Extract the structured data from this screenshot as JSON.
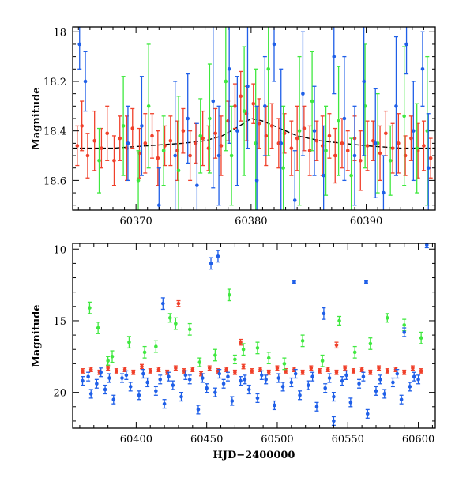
{
  "colors": {
    "blue": "#1f5fe8",
    "green": "#3fe83f",
    "red": "#f0402a",
    "model": "#000000"
  },
  "chart_data": [
    {
      "type": "scatter",
      "xlabel": "",
      "ylabel": "Magnitude",
      "xlim": [
        60364.5,
        60396
      ],
      "ylim": [
        18.72,
        17.98
      ],
      "y_inverted": true,
      "grid": false,
      "legend": "none",
      "xticks": [
        60370,
        60380,
        60390
      ],
      "yticks": [
        18,
        18.2,
        18.4,
        18.6
      ],
      "xtick_labels": [
        "60370",
        "60380",
        "60390"
      ],
      "ytick_labels": [
        "18",
        "18.2",
        "18.4",
        "18.6"
      ],
      "model_curve": {
        "x": [
          60364.5,
          60368,
          60371,
          60374,
          60376,
          60377.5,
          60379,
          60380,
          60381,
          60382.5,
          60384,
          60386,
          60388,
          60390,
          60393,
          60396
        ],
        "y": [
          18.47,
          18.47,
          18.46,
          18.45,
          18.44,
          18.42,
          18.38,
          18.35,
          18.36,
          18.39,
          18.42,
          18.44,
          18.45,
          18.46,
          18.47,
          18.47
        ]
      },
      "series": [
        {
          "color_key": "red",
          "x": [
            60364.9,
            60365.3,
            60365.8,
            60366.4,
            60367.0,
            60367.5,
            60368.1,
            60368.6,
            60369.2,
            60369.7,
            60370.3,
            60370.8,
            60371.4,
            60371.9,
            60372.5,
            60373.0,
            60373.6,
            60374.1,
            60374.7,
            60375.2,
            60375.8,
            60376.3,
            60376.9,
            60377.4,
            60378.0,
            60378.6,
            60379.1,
            60379.6,
            60380.2,
            60380.7,
            60381.3,
            60381.8,
            60382.4,
            60382.9,
            60383.5,
            60384.0,
            60384.6,
            60385.1,
            60385.7,
            60386.2,
            60386.8,
            60387.3,
            60387.9,
            60388.4,
            60389.0,
            60389.5,
            60390.1,
            60390.6,
            60391.2,
            60391.7,
            60392.3,
            60392.8,
            60393.4,
            60393.9,
            60394.5,
            60395.0,
            60395.6
          ],
          "y": [
            18.46,
            18.38,
            18.5,
            18.44,
            18.47,
            18.41,
            18.52,
            18.43,
            18.47,
            18.39,
            18.49,
            18.45,
            18.42,
            18.51,
            18.46,
            18.44,
            18.48,
            18.4,
            18.5,
            18.45,
            18.43,
            18.47,
            18.41,
            18.46,
            18.36,
            18.3,
            18.26,
            18.33,
            18.29,
            18.37,
            18.42,
            18.38,
            18.45,
            18.41,
            18.47,
            18.43,
            18.39,
            18.48,
            18.44,
            18.46,
            18.42,
            18.5,
            18.45,
            18.48,
            18.43,
            18.52,
            18.46,
            18.44,
            18.49,
            18.41,
            18.47,
            18.45,
            18.5,
            18.43,
            18.48,
            18.46,
            18.51
          ],
          "err": [
            0.08,
            0.1,
            0.09,
            0.12,
            0.08,
            0.11,
            0.1,
            0.09,
            0.13,
            0.08,
            0.1,
            0.12,
            0.09,
            0.11,
            0.08,
            0.1,
            0.12,
            0.09,
            0.1,
            0.08,
            0.11,
            0.09,
            0.1,
            0.12,
            0.08,
            0.09,
            0.1,
            0.11,
            0.08,
            0.1,
            0.12,
            0.09,
            0.1,
            0.08,
            0.11,
            0.13,
            0.09,
            0.1,
            0.08,
            0.12,
            0.09,
            0.11,
            0.1,
            0.08,
            0.09,
            0.12,
            0.1,
            0.08,
            0.11,
            0.09,
            0.1,
            0.12,
            0.08,
            0.09,
            0.11,
            0.1,
            0.08
          ]
        },
        {
          "color_key": "green",
          "x": [
            60366.8,
            60368.9,
            60370.2,
            60371.1,
            60372.4,
            60373.7,
            60375.6,
            60376.4,
            60377.8,
            60378.3,
            60379.4,
            60380.4,
            60381.5,
            60382.8,
            60384.2,
            60385.3,
            60386.5,
            60387.6,
            60388.7,
            60389.9,
            60391.0,
            60392.1,
            60393.3,
            60394.4,
            60395.3
          ],
          "y": [
            18.52,
            18.38,
            18.6,
            18.3,
            18.48,
            18.56,
            18.42,
            18.35,
            18.2,
            18.5,
            18.32,
            18.45,
            18.15,
            18.55,
            18.4,
            18.28,
            18.48,
            18.36,
            18.58,
            18.3,
            18.45,
            18.52,
            18.34,
            18.47,
            18.4
          ],
          "err": [
            0.13,
            0.2,
            0.12,
            0.25,
            0.14,
            0.3,
            0.15,
            0.22,
            0.28,
            0.2,
            0.26,
            0.3,
            0.35,
            0.25,
            0.3,
            0.2,
            0.18,
            0.22,
            0.15,
            0.25,
            0.2,
            0.14,
            0.28,
            0.18,
            0.3
          ]
        },
        {
          "color_key": "blue",
          "x": [
            60365.1,
            60365.6,
            60369.3,
            60370.5,
            60372.0,
            60373.4,
            60374.5,
            60375.3,
            60376.7,
            60377.2,
            60378.1,
            60378.8,
            60379.7,
            60380.5,
            60381.2,
            60382.0,
            60382.6,
            60383.8,
            60384.5,
            60385.5,
            60386.3,
            60387.2,
            60388.1,
            60389.0,
            60389.8,
            60390.8,
            60391.5,
            60392.6,
            60393.5,
            60394.1,
            60394.9,
            60395.4
          ],
          "y": [
            18.05,
            18.2,
            18.45,
            18.38,
            18.7,
            18.5,
            18.35,
            18.62,
            18.28,
            18.5,
            18.15,
            18.4,
            18.22,
            18.6,
            18.3,
            18.05,
            18.45,
            18.68,
            18.25,
            18.4,
            18.58,
            18.1,
            18.35,
            18.5,
            18.2,
            18.45,
            18.65,
            18.3,
            18.05,
            18.4,
            18.15,
            18.55
          ],
          "err": [
            0.1,
            0.12,
            0.15,
            0.2,
            0.15,
            0.3,
            0.18,
            0.25,
            0.35,
            0.2,
            0.3,
            0.22,
            0.25,
            0.3,
            0.2,
            0.15,
            0.3,
            0.2,
            0.25,
            0.18,
            0.2,
            0.15,
            0.25,
            0.2,
            0.3,
            0.22,
            0.15,
            0.28,
            0.12,
            0.2,
            0.15,
            0.22
          ]
        }
      ]
    },
    {
      "type": "scatter",
      "xlabel": "HJD−2400000",
      "ylabel": "Magnitude",
      "xlim": [
        60355,
        60612
      ],
      "ylim": [
        22.5,
        9.6
      ],
      "y_inverted": true,
      "grid": false,
      "legend": "none",
      "xticks": [
        60400,
        60450,
        60500,
        60550,
        60600
      ],
      "yticks": [
        10,
        15,
        20
      ],
      "xtick_labels": [
        "60400",
        "60450",
        "60500",
        "60550",
        "60600"
      ],
      "ytick_labels": [
        "10",
        "15",
        "20"
      ],
      "series": [
        {
          "color_key": "blue",
          "x": [
            60362,
            60368,
            60372,
            60378,
            60384,
            60390,
            60396,
            60402,
            60408,
            60414,
            60420,
            60426,
            60432,
            60438,
            60444,
            60450,
            60456,
            60462,
            60468,
            60474,
            60480,
            60486,
            60492,
            60498,
            60504,
            60510,
            60516,
            60522,
            60528,
            60534,
            60540,
            60546,
            60552,
            60558,
            60564,
            60570,
            60576,
            60582,
            60588,
            60594,
            60600,
            60366,
            60375,
            60381,
            60393,
            60405,
            60417,
            60423,
            60435,
            60447,
            60459,
            60465,
            60477,
            60489,
            60501,
            60513,
            60525,
            60537,
            60549,
            60561,
            60573,
            60585,
            60597,
            60419,
            60453,
            60458,
            60512,
            60533,
            60563,
            60606,
            60590,
            60540
          ],
          "y": [
            19.2,
            20.1,
            19.4,
            19.8,
            20.5,
            19.0,
            19.6,
            20.2,
            19.3,
            19.9,
            20.8,
            19.5,
            20.3,
            19.1,
            21.2,
            19.7,
            20.0,
            19.4,
            20.6,
            19.2,
            19.8,
            20.4,
            19.1,
            20.9,
            19.6,
            19.3,
            20.2,
            19.5,
            21.0,
            19.7,
            20.3,
            19.2,
            20.7,
            19.4,
            21.5,
            19.9,
            20.1,
            19.3,
            20.5,
            19.6,
            19.1,
            18.9,
            18.6,
            19.0,
            18.8,
            18.7,
            19.1,
            18.9,
            18.8,
            19.0,
            18.7,
            18.9,
            19.1,
            18.8,
            19.0,
            18.7,
            18.9,
            19.0,
            18.8,
            18.9,
            19.1,
            18.7,
            18.9,
            13.8,
            11.0,
            10.5,
            12.3,
            14.5,
            12.3,
            9.7,
            15.8,
            22.0
          ],
          "err": [
            0.3,
            0.3,
            0.3,
            0.3,
            0.3,
            0.3,
            0.3,
            0.3,
            0.3,
            0.3,
            0.3,
            0.3,
            0.3,
            0.3,
            0.3,
            0.3,
            0.3,
            0.3,
            0.3,
            0.3,
            0.3,
            0.3,
            0.3,
            0.3,
            0.3,
            0.3,
            0.3,
            0.3,
            0.3,
            0.3,
            0.3,
            0.3,
            0.3,
            0.3,
            0.3,
            0.3,
            0.3,
            0.3,
            0.3,
            0.3,
            0.3,
            0.3,
            0.3,
            0.3,
            0.3,
            0.3,
            0.3,
            0.3,
            0.3,
            0.3,
            0.3,
            0.3,
            0.3,
            0.3,
            0.3,
            0.3,
            0.3,
            0.3,
            0.3,
            0.3,
            0.3,
            0.3,
            0.3,
            0.4,
            0.4,
            0.4,
            0.1,
            0.4,
            0.1,
            0.2,
            0.3,
            0.3
          ]
        },
        {
          "color_key": "green",
          "x": [
            60367,
            60373,
            60383,
            60395,
            60406,
            60414,
            60424,
            60428,
            60438,
            60445,
            60456,
            60466,
            60476,
            60486,
            60494,
            60505,
            60518,
            60532,
            60544,
            60555,
            60566,
            60578,
            60590,
            60602,
            60380,
            60470
          ],
          "y": [
            14.1,
            15.5,
            17.5,
            16.5,
            17.2,
            16.8,
            14.8,
            15.2,
            15.6,
            17.9,
            17.4,
            13.2,
            17.0,
            16.9,
            17.6,
            18.0,
            16.4,
            17.8,
            15.0,
            17.2,
            16.6,
            14.8,
            15.3,
            16.2,
            17.8,
            17.7
          ],
          "err": [
            0.4,
            0.4,
            0.4,
            0.4,
            0.4,
            0.4,
            0.3,
            0.4,
            0.4,
            0.3,
            0.4,
            0.4,
            0.4,
            0.4,
            0.4,
            0.4,
            0.4,
            0.4,
            0.3,
            0.4,
            0.4,
            0.3,
            0.4,
            0.4,
            0.3,
            0.3
          ]
        },
        {
          "color_key": "red",
          "x": [
            60362,
            60368,
            60374,
            60380,
            60386,
            60392,
            60398,
            60404,
            60410,
            60416,
            60422,
            60428,
            60434,
            60440,
            60446,
            60452,
            60458,
            60464,
            60470,
            60476,
            60482,
            60488,
            60494,
            60500,
            60506,
            60512,
            60518,
            60524,
            60530,
            60536,
            60542,
            60548,
            60554,
            60560,
            60566,
            60572,
            60578,
            60584,
            60590,
            60596,
            60602,
            60430,
            60474,
            60542
          ],
          "y": [
            18.5,
            18.4,
            18.6,
            18.3,
            18.5,
            18.4,
            18.6,
            18.2,
            18.5,
            18.4,
            18.6,
            18.3,
            18.5,
            18.4,
            18.7,
            18.3,
            18.5,
            18.4,
            18.6,
            18.2,
            18.5,
            18.4,
            18.6,
            18.3,
            18.5,
            18.4,
            18.6,
            18.3,
            18.5,
            18.4,
            18.6,
            18.3,
            18.5,
            18.4,
            18.6,
            18.3,
            18.5,
            18.4,
            18.6,
            18.3,
            18.5,
            13.8,
            16.5,
            16.7
          ],
          "err": [
            0.15,
            0.15,
            0.15,
            0.15,
            0.15,
            0.15,
            0.15,
            0.15,
            0.15,
            0.15,
            0.15,
            0.15,
            0.15,
            0.15,
            0.15,
            0.15,
            0.15,
            0.15,
            0.15,
            0.15,
            0.15,
            0.15,
            0.15,
            0.15,
            0.15,
            0.15,
            0.15,
            0.15,
            0.15,
            0.15,
            0.15,
            0.15,
            0.15,
            0.15,
            0.15,
            0.15,
            0.15,
            0.15,
            0.15,
            0.15,
            0.15,
            0.2,
            0.2,
            0.2
          ]
        }
      ]
    }
  ]
}
